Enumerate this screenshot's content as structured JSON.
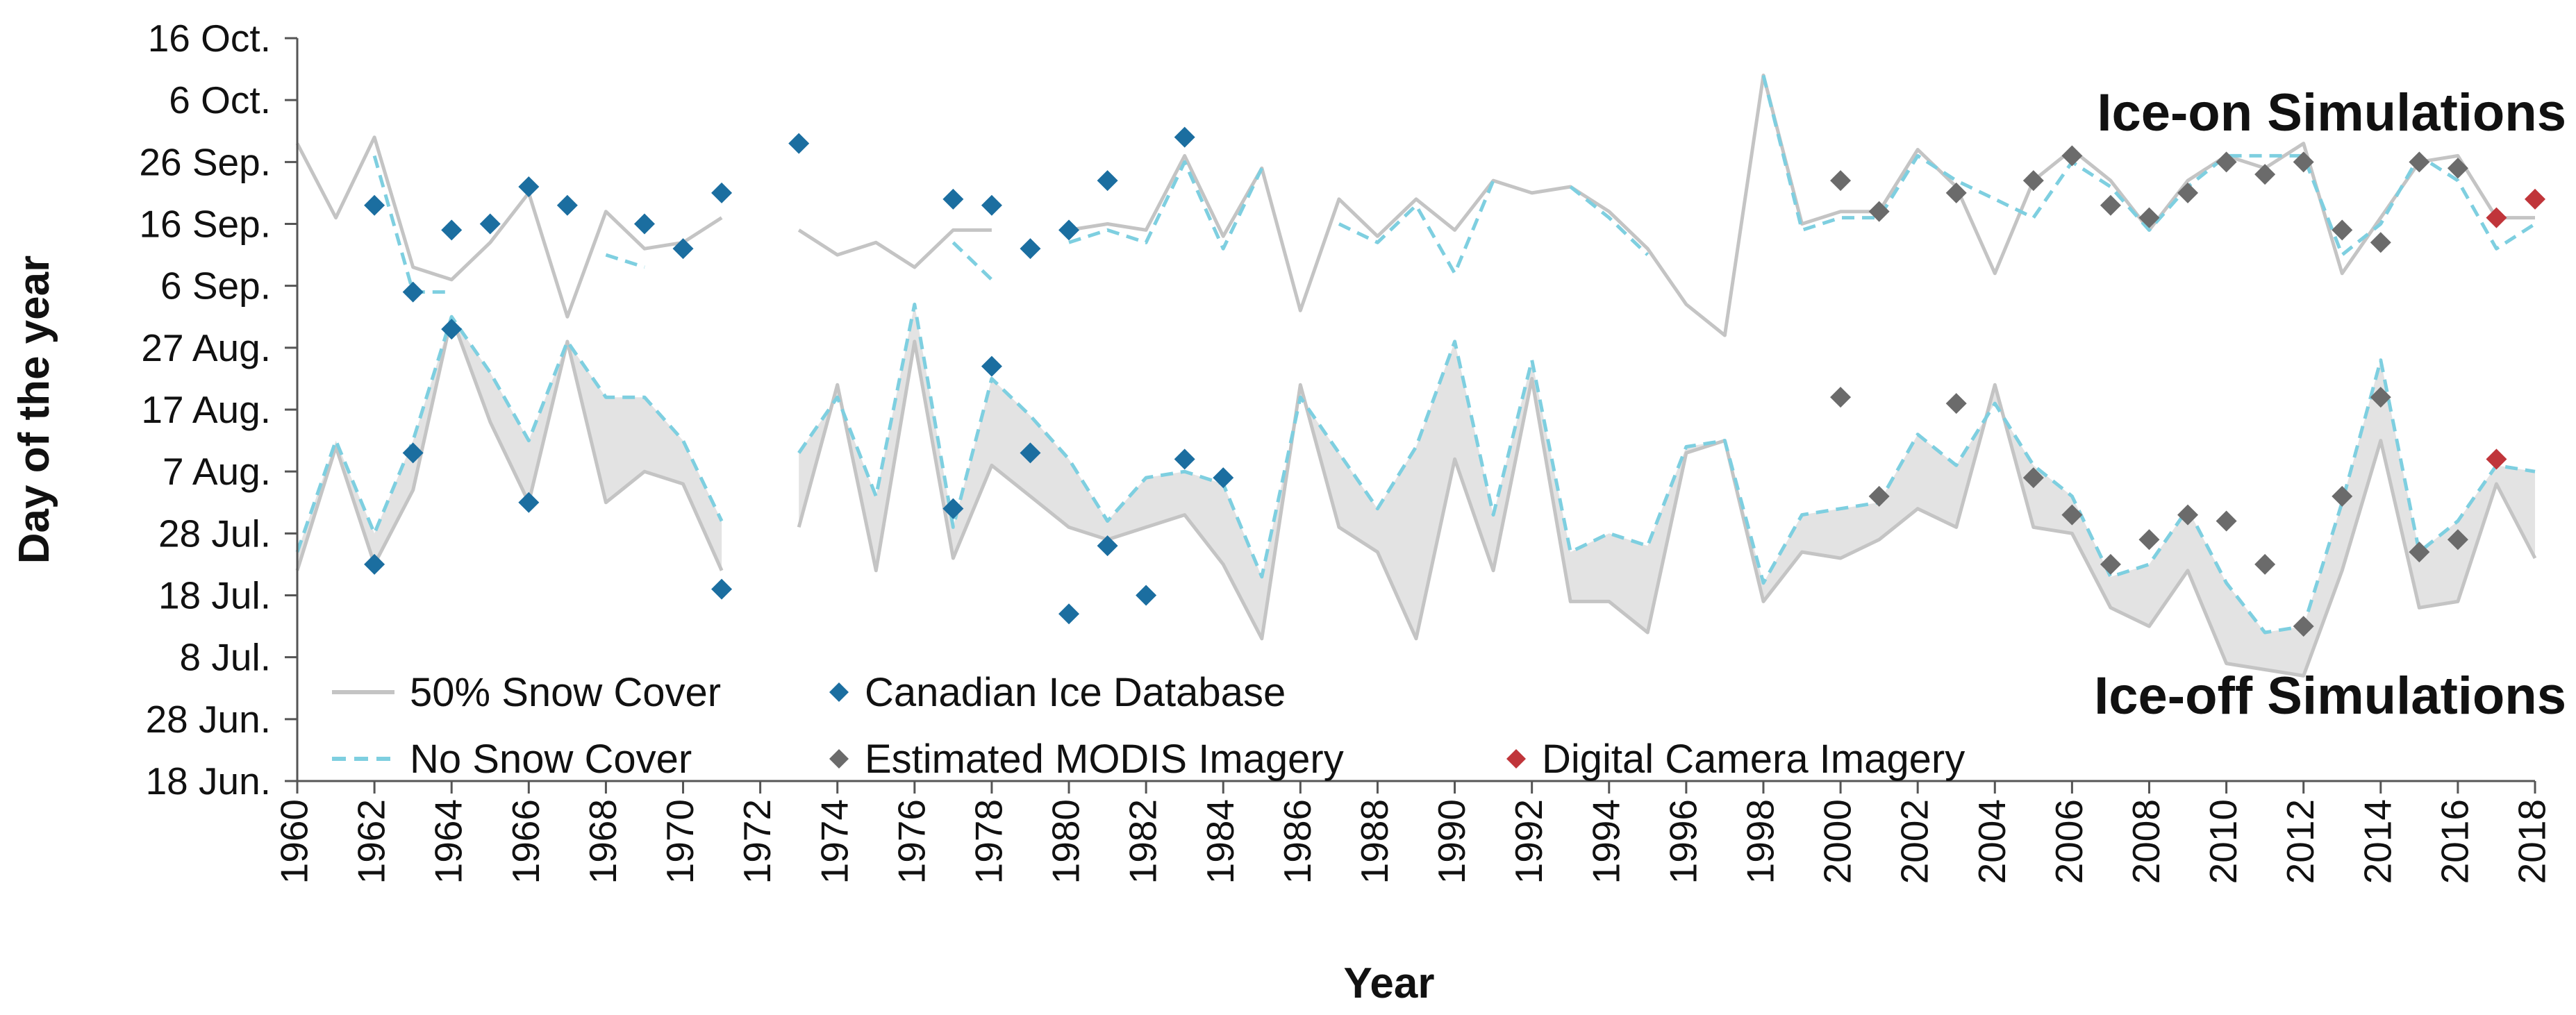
{
  "chart_data": {
    "type": "line",
    "xlabel": "Year",
    "ylabel": "Day of the year",
    "xlim": [
      1960,
      2018
    ],
    "ylim": [
      169,
      289
    ],
    "y_ticks": [
      {
        "value": 169,
        "label": "18 Jun."
      },
      {
        "value": 179,
        "label": "28 Jun."
      },
      {
        "value": 189,
        "label": "8 Jul."
      },
      {
        "value": 199,
        "label": "18 Jul."
      },
      {
        "value": 209,
        "label": "28 Jul."
      },
      {
        "value": 219,
        "label": "7 Aug."
      },
      {
        "value": 229,
        "label": "17 Aug."
      },
      {
        "value": 239,
        "label": "27 Aug."
      },
      {
        "value": 249,
        "label": "6 Sep."
      },
      {
        "value": 259,
        "label": "16 Sep."
      },
      {
        "value": 269,
        "label": "26 Sep."
      },
      {
        "value": 279,
        "label": "6 Oct."
      },
      {
        "value": 289,
        "label": "16 Oct."
      }
    ],
    "x_ticks": [
      1960,
      1962,
      1964,
      1966,
      1968,
      1970,
      1972,
      1974,
      1976,
      1978,
      1980,
      1982,
      1984,
      1986,
      1988,
      1990,
      1992,
      1994,
      1996,
      1998,
      2000,
      2002,
      2004,
      2006,
      2008,
      2010,
      2012,
      2014,
      2016,
      2018
    ],
    "annotations": [
      "Ice-on Simulations",
      "Ice-off Simulations"
    ],
    "legend": {
      "placement": "bottom-left",
      "items": [
        {
          "label": "50% Snow Cover",
          "kind": "line",
          "color": "#c4c4c4"
        },
        {
          "label": "No Snow Cover",
          "kind": "dashed",
          "color": "#7ecfe0"
        },
        {
          "label": "Canadian Ice Database",
          "kind": "diamond",
          "color": "#1b6ea0"
        },
        {
          "label": "Estimated MODIS Imagery",
          "kind": "diamond",
          "color": "#6b6b6b"
        },
        {
          "label": "Digital Camera Imagery",
          "kind": "diamond",
          "color": "#c0353a"
        }
      ]
    },
    "series": [
      {
        "name": "Ice-on 50% Snow Cover",
        "group": "ice-on",
        "style": "solid",
        "color": "#c4c4c4",
        "x": [
          1960,
          1961,
          1962,
          1963,
          1964,
          1965,
          1966,
          1967,
          1968,
          1969,
          1970,
          1971,
          null,
          1973,
          1974,
          1975,
          1976,
          1977,
          1978,
          null,
          1980,
          1981,
          1982,
          1983,
          1984,
          1985,
          1986,
          1987,
          1988,
          1989,
          1990,
          1991,
          1992,
          1993,
          1994,
          1995,
          1996,
          1997,
          1998,
          1999,
          2000,
          2001,
          2002,
          2003,
          2004,
          2005,
          2006,
          2007,
          2008,
          2009,
          2010,
          2011,
          2012,
          2013,
          2014,
          2015,
          2016,
          2017,
          2018
        ],
        "y": [
          272,
          260,
          273,
          252,
          250,
          256,
          264,
          244,
          261,
          255,
          256,
          260,
          null,
          258,
          254,
          256,
          252,
          258,
          258,
          null,
          258,
          259,
          258,
          270,
          257,
          268,
          245,
          263,
          257,
          263,
          258,
          266,
          264,
          265,
          261,
          255,
          246,
          241,
          283,
          259,
          261,
          261,
          271,
          265,
          251,
          266,
          271,
          266,
          258,
          266,
          270,
          268,
          272,
          251,
          260,
          269,
          270,
          260,
          260
        ]
      },
      {
        "name": "Ice-on No Snow Cover",
        "group": "ice-on",
        "style": "dashed",
        "color": "#7ecfe0",
        "x": [
          1962,
          1963,
          1964,
          null,
          1968,
          1969,
          null,
          1977,
          1978,
          null,
          1980,
          1981,
          1982,
          1983,
          1984,
          1985,
          null,
          1987,
          1988,
          1989,
          1990,
          1991,
          1992,
          1993,
          1994,
          1995,
          null,
          1998,
          1999,
          2000,
          2001,
          2002,
          2003,
          2004,
          2005,
          2006,
          2007,
          2008,
          2009,
          2010,
          2011,
          2012,
          2013,
          2014,
          2015,
          2016,
          2017,
          2018
        ],
        "y": [
          270,
          248,
          248,
          null,
          254,
          252,
          null,
          256,
          250,
          null,
          256,
          258,
          256,
          269,
          255,
          268,
          null,
          259,
          256,
          262,
          251,
          266,
          null,
          265,
          260,
          254,
          null,
          283,
          258,
          260,
          260,
          270,
          266,
          263,
          260,
          269,
          265,
          258,
          265,
          270,
          270,
          270,
          254,
          259,
          270,
          266,
          255,
          259
        ]
      },
      {
        "name": "Ice-off 50% Snow Cover",
        "group": "ice-off",
        "style": "solid",
        "color": "#c4c4c4",
        "x": [
          1960,
          1961,
          1962,
          1963,
          1964,
          1965,
          1966,
          1967,
          1968,
          1969,
          1970,
          1971,
          null,
          1973,
          1974,
          1975,
          1976,
          1977,
          1978,
          1979,
          1980,
          1981,
          1982,
          1983,
          1984,
          1985,
          1986,
          1987,
          1988,
          1989,
          1990,
          1991,
          1992,
          1993,
          1994,
          1995,
          1996,
          1997,
          1998,
          1999,
          2000,
          2001,
          2002,
          2003,
          2004,
          2005,
          2006,
          2007,
          2008,
          2009,
          2010,
          2011,
          2012,
          2013,
          2014,
          2015,
          2016,
          2017,
          2018
        ],
        "y": [
          203,
          223,
          204,
          216,
          244,
          227,
          214,
          240,
          214,
          219,
          217,
          203,
          null,
          210,
          233,
          203,
          240,
          205,
          220,
          215,
          210,
          208,
          210,
          212,
          204,
          192,
          233,
          210,
          206,
          192,
          221,
          203,
          234,
          198,
          198,
          193,
          222,
          224,
          198,
          206,
          205,
          208,
          213,
          210,
          233,
          210,
          209,
          197,
          194,
          203,
          188,
          187,
          186,
          203,
          224,
          197,
          198,
          217,
          205
        ]
      },
      {
        "name": "Ice-off No Snow Cover",
        "group": "ice-off",
        "style": "dashed",
        "color": "#7ecfe0",
        "x": [
          1960,
          1961,
          1962,
          1963,
          1964,
          1965,
          1966,
          1967,
          1968,
          1969,
          1970,
          1971,
          null,
          1973,
          1974,
          1975,
          1976,
          1977,
          1978,
          1979,
          1980,
          1981,
          1982,
          1983,
          1984,
          1985,
          1986,
          1987,
          1988,
          1989,
          1990,
          1991,
          1992,
          1993,
          1994,
          1995,
          1996,
          1997,
          1998,
          1999,
          2000,
          2001,
          2002,
          2003,
          2004,
          2005,
          2006,
          2007,
          2008,
          2009,
          2010,
          2011,
          2012,
          2013,
          2014,
          2015,
          2016,
          2017,
          2018
        ],
        "y": [
          206,
          224,
          209,
          224,
          244,
          235,
          224,
          240,
          231,
          231,
          224,
          211,
          null,
          222,
          231,
          215,
          246,
          210,
          234,
          228,
          221,
          211,
          218,
          219,
          217,
          202,
          231,
          222,
          213,
          223,
          240,
          212,
          237,
          206,
          209,
          207,
          223,
          224,
          201,
          212,
          213,
          214,
          225,
          220,
          230,
          220,
          215,
          202,
          204,
          213,
          201,
          193,
          194,
          214,
          237,
          206,
          211,
          220,
          219
        ]
      }
    ],
    "points": [
      {
        "name": "Canadian Ice Database",
        "color": "#1b6ea0",
        "x": [
          1962,
          1963,
          1964,
          1965,
          1966,
          1967,
          1969,
          1970,
          1971,
          1973,
          1977,
          1978,
          1979,
          1980,
          1981,
          1983,
          1962,
          1963,
          1964,
          1966,
          1971,
          1977,
          1978,
          1979,
          1980,
          1981,
          1982,
          1983,
          1984
        ],
        "y": [
          262,
          248,
          258,
          259,
          265,
          262,
          259,
          255,
          264,
          272,
          263,
          262,
          255,
          258,
          266,
          273,
          204,
          222,
          242,
          214,
          200,
          213,
          236,
          222,
          196,
          207,
          199,
          221,
          218
        ]
      },
      {
        "name": "Estimated MODIS Imagery",
        "color": "#6b6b6b",
        "x": [
          2000,
          2001,
          2003,
          2005,
          2006,
          2007,
          2008,
          2009,
          2010,
          2011,
          2012,
          2013,
          2014,
          2015,
          2016,
          2000,
          2001,
          2003,
          2005,
          2006,
          2007,
          2008,
          2009,
          2010,
          2011,
          2012,
          2013,
          2014,
          2015,
          2016
        ],
        "y": [
          266,
          261,
          264,
          266,
          270,
          262,
          260,
          264,
          269,
          267,
          269,
          258,
          256,
          269,
          268,
          231,
          215,
          230,
          218,
          212,
          204,
          208,
          212,
          211,
          204,
          194,
          215,
          231,
          206,
          208
        ]
      },
      {
        "name": "Digital Camera Imagery",
        "color": "#c0353a",
        "x": [
          2017,
          2018,
          2017
        ],
        "y": [
          260,
          263,
          221
        ]
      }
    ]
  }
}
